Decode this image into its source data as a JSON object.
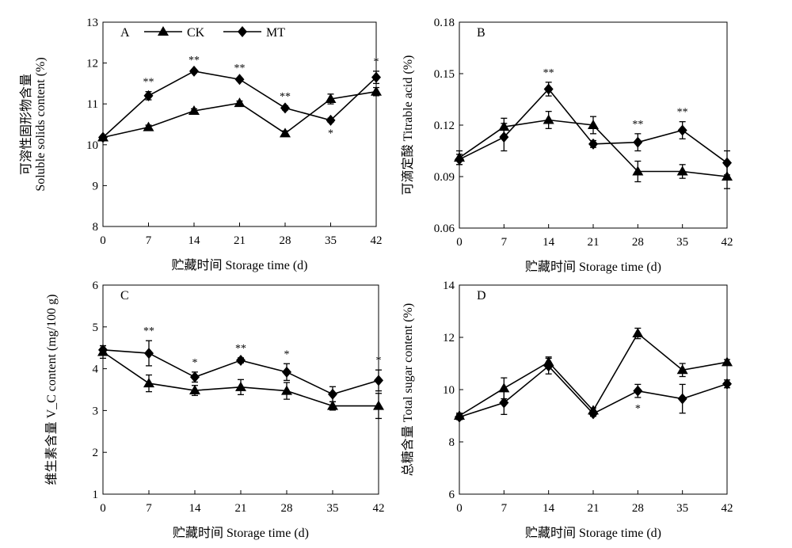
{
  "chart_data": [
    {
      "type": "line",
      "panel_label": "A",
      "ylabel": "可溶性固形物含量\nSoluble solids content (%)",
      "xlabel": "贮藏时间 Storage time (d)",
      "x": [
        0,
        7,
        14,
        21,
        28,
        35,
        42
      ],
      "xticks": [
        "0",
        "7",
        "14",
        "21",
        "28",
        "35",
        "42"
      ],
      "ylim": [
        8,
        13
      ],
      "yticks": [
        "8",
        "9",
        "10",
        "11",
        "12",
        "13"
      ],
      "legend": true,
      "series": [
        {
          "name": "CK",
          "marker": "triangle",
          "values": [
            10.18,
            10.43,
            10.83,
            11.02,
            10.28,
            11.12,
            11.3
          ],
          "errors": [
            0.04,
            0.05,
            0.05,
            0.05,
            0.06,
            0.12,
            0.1
          ]
        },
        {
          "name": "MT",
          "marker": "diamond",
          "values": [
            10.18,
            11.2,
            11.8,
            11.6,
            10.9,
            10.6,
            11.65
          ],
          "errors": [
            0.04,
            0.1,
            0.04,
            0.04,
            0.05,
            0.05,
            0.15
          ]
        }
      ],
      "annotations": [
        {
          "x": 7,
          "text": "**",
          "pos": "above"
        },
        {
          "x": 14,
          "text": "**",
          "pos": "above"
        },
        {
          "x": 21,
          "text": "**",
          "pos": "above"
        },
        {
          "x": 28,
          "text": "**",
          "pos": "above"
        },
        {
          "x": 35,
          "text": "*",
          "pos": "below"
        },
        {
          "x": 42,
          "text": "*",
          "pos": "above"
        }
      ]
    },
    {
      "type": "line",
      "panel_label": "B",
      "ylabel": "可滴定酸 Titrable acid (%)",
      "xlabel": "贮藏时间 Storage time (d)",
      "x": [
        0,
        7,
        14,
        21,
        28,
        35,
        42
      ],
      "xticks": [
        "0",
        "7",
        "14",
        "21",
        "28",
        "35",
        "42"
      ],
      "ylim": [
        0.06,
        0.18
      ],
      "yticks": [
        "0.06",
        "0.09",
        "0.12",
        "0.15",
        "0.18"
      ],
      "legend": false,
      "series": [
        {
          "name": "CK",
          "marker": "triangle",
          "values": [
            0.101,
            0.119,
            0.123,
            0.12,
            0.093,
            0.093,
            0.09
          ],
          "errors": [
            0.004,
            0.005,
            0.005,
            0.005,
            0.006,
            0.004,
            0.007
          ]
        },
        {
          "name": "MT",
          "marker": "diamond",
          "values": [
            0.1,
            0.113,
            0.141,
            0.109,
            0.11,
            0.117,
            0.098
          ],
          "errors": [
            0.003,
            0.008,
            0.004,
            0.002,
            0.005,
            0.005,
            0.007
          ]
        }
      ],
      "annotations": [
        {
          "x": 14,
          "text": "**",
          "pos": "above"
        },
        {
          "x": 28,
          "text": "**",
          "pos": "above"
        },
        {
          "x": 35,
          "text": "**",
          "pos": "above"
        }
      ]
    },
    {
      "type": "line",
      "panel_label": "C",
      "ylabel": "维生素含量 V_C content (mg/100 g)",
      "xlabel": "贮藏时间 Storage time (d)",
      "x": [
        0,
        7,
        14,
        21,
        28,
        35,
        42
      ],
      "xticks": [
        "0",
        "7",
        "14",
        "21",
        "28",
        "35",
        "42"
      ],
      "ylim": [
        1,
        6
      ],
      "yticks": [
        "1",
        "2",
        "3",
        "4",
        "5",
        "6"
      ],
      "legend": false,
      "series": [
        {
          "name": "CK",
          "marker": "triangle",
          "values": [
            4.4,
            3.65,
            3.48,
            3.56,
            3.47,
            3.11,
            3.11
          ],
          "errors": [
            0.15,
            0.2,
            0.12,
            0.18,
            0.2,
            0.1,
            0.3
          ]
        },
        {
          "name": "MT",
          "marker": "diamond",
          "values": [
            4.45,
            4.37,
            3.8,
            4.2,
            3.92,
            3.39,
            3.72
          ],
          "errors": [
            0.1,
            0.3,
            0.12,
            0.06,
            0.2,
            0.18,
            0.25
          ]
        }
      ],
      "annotations": [
        {
          "x": 7,
          "text": "**",
          "pos": "above"
        },
        {
          "x": 14,
          "text": "*",
          "pos": "above"
        },
        {
          "x": 21,
          "text": "**",
          "pos": "above"
        },
        {
          "x": 28,
          "text": "*",
          "pos": "above"
        },
        {
          "x": 42,
          "text": "*",
          "pos": "above"
        }
      ]
    },
    {
      "type": "line",
      "panel_label": "D",
      "ylabel": "总糖含量 Total sugar content (%)",
      "xlabel": "贮藏时间 Storage time (d)",
      "x": [
        0,
        7,
        14,
        21,
        28,
        35,
        42
      ],
      "xticks": [
        "0",
        "7",
        "14",
        "21",
        "28",
        "35",
        "42"
      ],
      "ylim": [
        6,
        14
      ],
      "yticks": [
        "6",
        "8",
        "10",
        "12",
        "14"
      ],
      "legend": false,
      "series": [
        {
          "name": "CK",
          "marker": "triangle",
          "values": [
            9.0,
            10.05,
            11.05,
            9.2,
            12.15,
            10.75,
            11.05
          ],
          "errors": [
            0.1,
            0.4,
            0.2,
            0.1,
            0.2,
            0.25,
            0.1
          ]
        },
        {
          "name": "MT",
          "marker": "diamond",
          "values": [
            8.95,
            9.5,
            10.9,
            9.08,
            9.95,
            9.65,
            10.22
          ],
          "errors": [
            0.1,
            0.45,
            0.3,
            0.1,
            0.25,
            0.55,
            0.15
          ]
        }
      ],
      "annotations": [
        {
          "x": 28,
          "text": "*",
          "pos": "below"
        }
      ]
    }
  ]
}
